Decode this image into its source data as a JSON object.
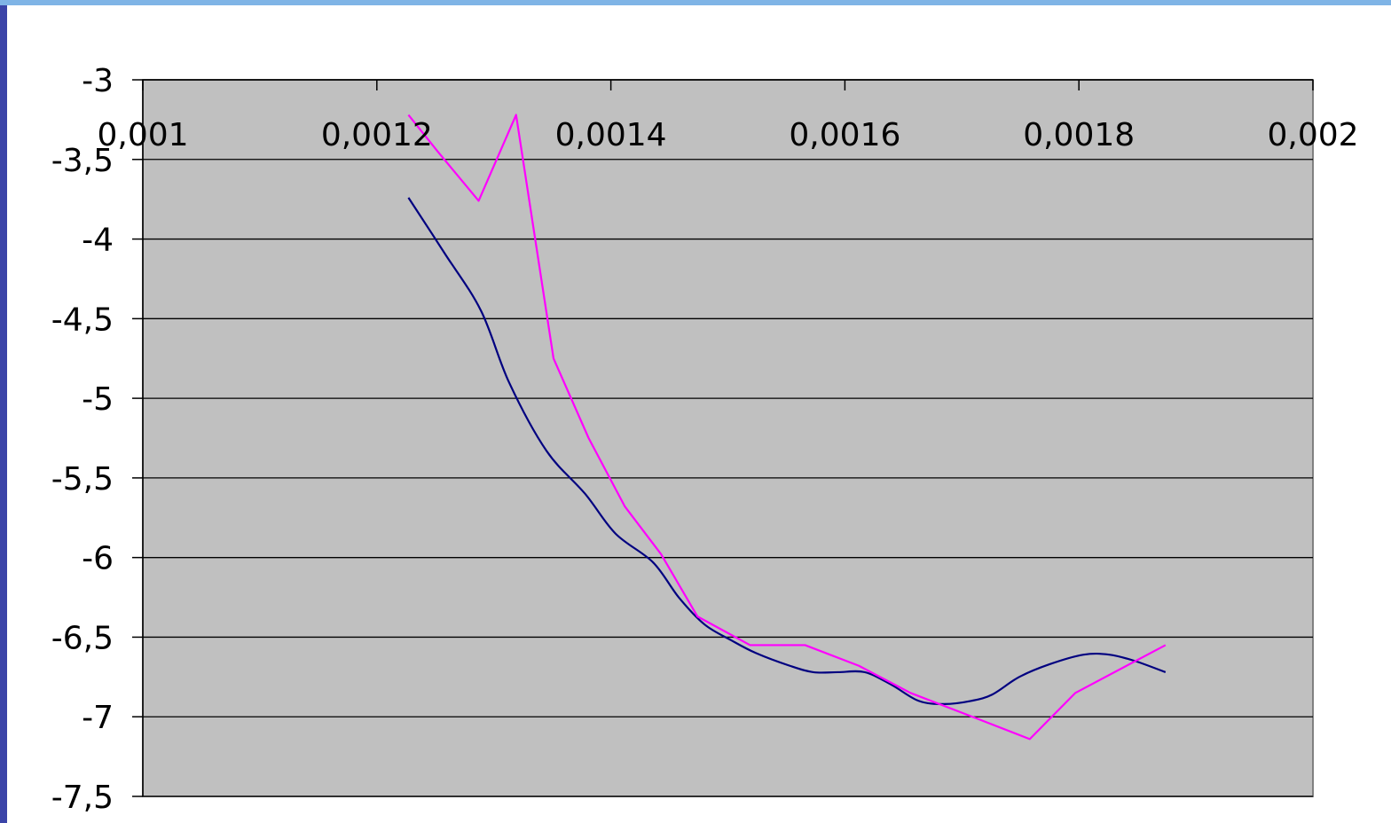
{
  "slide": {
    "frame_color": "#3b44a8",
    "top_band_color": "#7fb4e6",
    "background": "#ffffff"
  },
  "chart_data": {
    "type": "line",
    "title": "",
    "xlabel": "",
    "ylabel": "",
    "xlim": [
      0.001,
      0.002
    ],
    "ylim": [
      -7.5,
      -3
    ],
    "x_ticks": [
      0.001,
      0.0012,
      0.0014,
      0.0016,
      0.0018,
      0.002
    ],
    "x_tick_labels": [
      "0,001",
      "0,0012",
      "0,0014",
      "0,0016",
      "0,0018",
      "0,002"
    ],
    "y_ticks": [
      -3,
      -3.5,
      -4,
      -4.5,
      -5,
      -5.5,
      -6,
      -6.5,
      -7,
      -7.5
    ],
    "y_tick_labels": [
      "-3",
      "-3,5",
      "-4",
      "-4,5",
      "-5",
      "-5,5",
      "-6",
      "-6,5",
      "-7",
      "-7,5"
    ],
    "x_axis_position": "top",
    "grid": {
      "horizontal": true,
      "vertical": false
    },
    "plot_background": "#c0c0c0",
    "legend": "none",
    "series": [
      {
        "color": "#000080",
        "smooth": true,
        "points": [
          [
            0.001227,
            -3.74
          ],
          [
            0.001258,
            -4.09
          ],
          [
            0.001289,
            -4.45
          ],
          [
            0.001313,
            -4.9
          ],
          [
            0.001345,
            -5.33
          ],
          [
            0.001378,
            -5.6
          ],
          [
            0.001404,
            -5.85
          ],
          [
            0.001436,
            -6.03
          ],
          [
            0.001458,
            -6.25
          ],
          [
            0.00148,
            -6.42
          ],
          [
            0.001503,
            -6.52
          ],
          [
            0.001524,
            -6.6
          ],
          [
            0.001553,
            -6.68
          ],
          [
            0.001573,
            -6.72
          ],
          [
            0.001594,
            -6.72
          ],
          [
            0.001617,
            -6.72
          ],
          [
            0.00164,
            -6.8
          ],
          [
            0.001663,
            -6.9
          ],
          [
            0.001685,
            -6.92
          ],
          [
            0.001708,
            -6.9
          ],
          [
            0.001726,
            -6.86
          ],
          [
            0.001749,
            -6.75
          ],
          [
            0.001775,
            -6.67
          ],
          [
            0.001804,
            -6.61
          ],
          [
            0.001826,
            -6.61
          ],
          [
            0.001848,
            -6.65
          ],
          [
            0.001874,
            -6.72
          ]
        ]
      },
      {
        "color": "#ff00ff",
        "smooth": false,
        "points": [
          [
            0.001227,
            -3.22
          ],
          [
            0.001252,
            -3.45
          ],
          [
            0.001287,
            -3.76
          ],
          [
            0.001319,
            -3.22
          ],
          [
            0.001351,
            -4.75
          ],
          [
            0.001381,
            -5.25
          ],
          [
            0.001412,
            -5.68
          ],
          [
            0.001443,
            -5.98
          ],
          [
            0.001474,
            -6.37
          ],
          [
            0.001519,
            -6.55
          ],
          [
            0.001566,
            -6.55
          ],
          [
            0.001612,
            -6.68
          ],
          [
            0.001656,
            -6.85
          ],
          [
            0.001709,
            -7.0
          ],
          [
            0.001758,
            -7.14
          ],
          [
            0.001797,
            -6.85
          ],
          [
            0.001874,
            -6.55
          ]
        ]
      }
    ]
  }
}
